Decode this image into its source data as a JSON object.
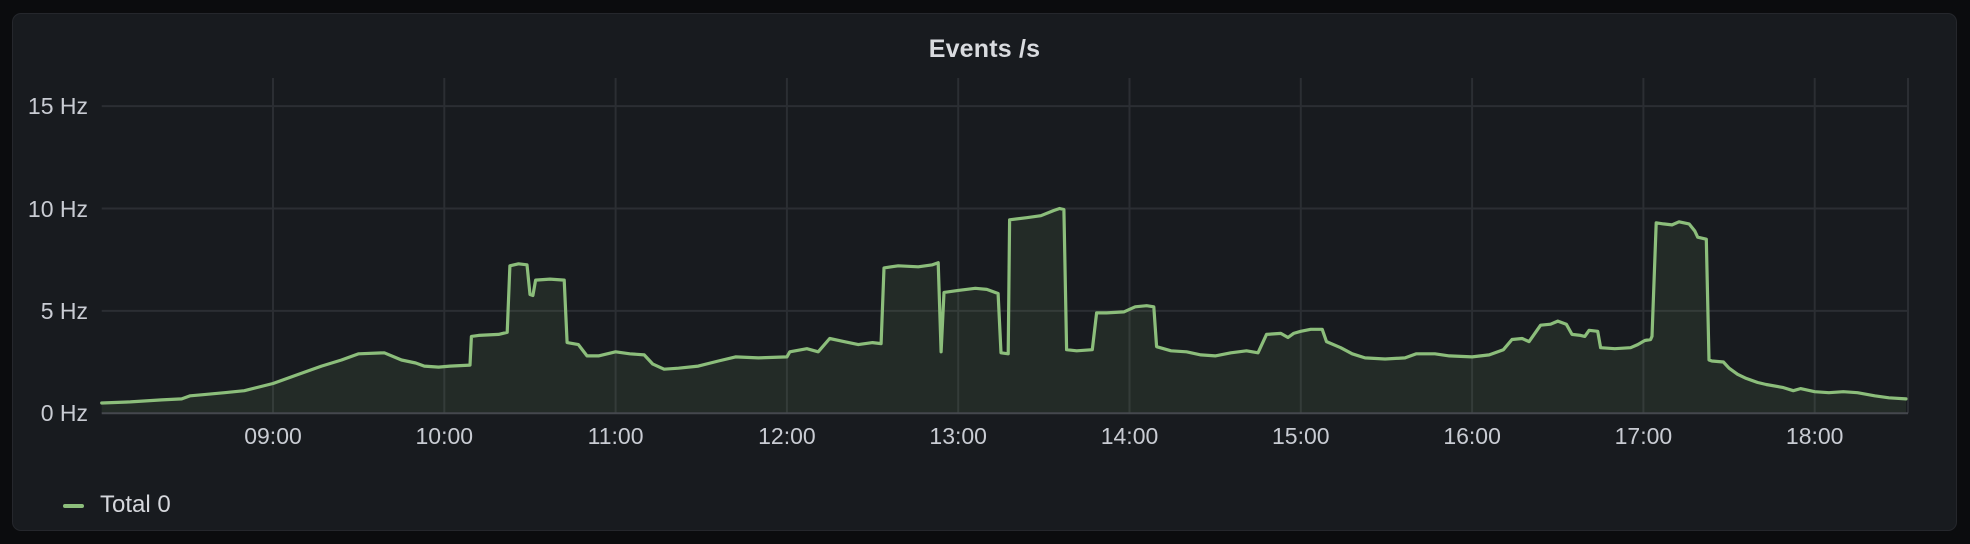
{
  "page": {
    "background": "#0B0C0E"
  },
  "panel": {
    "title": "Events /s",
    "background": "#181B1F",
    "border_color": "#25272C"
  },
  "legend": {
    "items": [
      {
        "label": "Total 0",
        "color": "#8CBE7B"
      }
    ]
  },
  "colors": {
    "series_green": "#8CBE7B",
    "series_fill": "rgba(140,190,120,0.10)",
    "gridline": "#2B2E33",
    "zero_axis_line": "#45484E",
    "tick_text": "#C9CCD3",
    "title_text": "#D9DBDF"
  },
  "chart_data": {
    "type": "area",
    "title": "Events /s",
    "unit": "Hz",
    "legend_position": "bottom-left",
    "grid": true,
    "x_axis": {
      "start": "08:00",
      "end": "18:33",
      "tick_labels": [
        "09:00",
        "10:00",
        "11:00",
        "12:00",
        "13:00",
        "14:00",
        "15:00",
        "16:00",
        "17:00",
        "18:00"
      ],
      "tick_hours": [
        9,
        10,
        11,
        12,
        13,
        14,
        15,
        16,
        17,
        18
      ]
    },
    "y_axis": {
      "tick_labels": [
        "0 Hz",
        "5 Hz",
        "10 Hz",
        "15 Hz"
      ],
      "tick_values": [
        0,
        5,
        10,
        15
      ],
      "min": 0,
      "max_visible": 16.4
    },
    "series": [
      {
        "name": "Total 0",
        "color": "#8CBE7B",
        "fill_opacity": 0.1,
        "points_hour_hz": [
          [
            8.0,
            0.5
          ],
          [
            8.167,
            0.55
          ],
          [
            8.35,
            0.65
          ],
          [
            8.467,
            0.7
          ],
          [
            8.517,
            0.85
          ],
          [
            8.583,
            0.9
          ],
          [
            8.717,
            1.0
          ],
          [
            8.833,
            1.1
          ],
          [
            9.0,
            1.45
          ],
          [
            9.15,
            1.9
          ],
          [
            9.283,
            2.3
          ],
          [
            9.4,
            2.6
          ],
          [
            9.5,
            2.9
          ],
          [
            9.65,
            2.95
          ],
          [
            9.75,
            2.6
          ],
          [
            9.833,
            2.45
          ],
          [
            9.883,
            2.3
          ],
          [
            9.967,
            2.25
          ],
          [
            10.033,
            2.3
          ],
          [
            10.15,
            2.35
          ],
          [
            10.158,
            3.75
          ],
          [
            10.2,
            3.8
          ],
          [
            10.317,
            3.85
          ],
          [
            10.367,
            3.95
          ],
          [
            10.383,
            7.2
          ],
          [
            10.433,
            7.3
          ],
          [
            10.483,
            7.25
          ],
          [
            10.5,
            5.8
          ],
          [
            10.517,
            5.75
          ],
          [
            10.533,
            6.5
          ],
          [
            10.617,
            6.55
          ],
          [
            10.7,
            6.5
          ],
          [
            10.717,
            3.45
          ],
          [
            10.783,
            3.35
          ],
          [
            10.833,
            2.8
          ],
          [
            10.9,
            2.8
          ],
          [
            11.0,
            3.0
          ],
          [
            11.083,
            2.9
          ],
          [
            11.167,
            2.85
          ],
          [
            11.217,
            2.4
          ],
          [
            11.283,
            2.15
          ],
          [
            11.367,
            2.2
          ],
          [
            11.483,
            2.3
          ],
          [
            11.6,
            2.55
          ],
          [
            11.7,
            2.75
          ],
          [
            11.833,
            2.7
          ],
          [
            12.0,
            2.75
          ],
          [
            12.017,
            3.0
          ],
          [
            12.117,
            3.15
          ],
          [
            12.183,
            3.0
          ],
          [
            12.25,
            3.65
          ],
          [
            12.333,
            3.5
          ],
          [
            12.417,
            3.35
          ],
          [
            12.5,
            3.45
          ],
          [
            12.55,
            3.4
          ],
          [
            12.567,
            7.1
          ],
          [
            12.65,
            7.2
          ],
          [
            12.767,
            7.15
          ],
          [
            12.85,
            7.25
          ],
          [
            12.883,
            7.35
          ],
          [
            12.9,
            3.0
          ],
          [
            12.917,
            5.9
          ],
          [
            13.0,
            6.0
          ],
          [
            13.1,
            6.1
          ],
          [
            13.167,
            6.05
          ],
          [
            13.233,
            5.85
          ],
          [
            13.25,
            2.95
          ],
          [
            13.292,
            2.9
          ],
          [
            13.3,
            9.45
          ],
          [
            13.4,
            9.55
          ],
          [
            13.483,
            9.65
          ],
          [
            13.558,
            9.9
          ],
          [
            13.592,
            10.0
          ],
          [
            13.617,
            9.95
          ],
          [
            13.633,
            3.1
          ],
          [
            13.692,
            3.05
          ],
          [
            13.783,
            3.1
          ],
          [
            13.808,
            4.9
          ],
          [
            13.867,
            4.9
          ],
          [
            13.967,
            4.95
          ],
          [
            14.033,
            5.2
          ],
          [
            14.1,
            5.25
          ],
          [
            14.142,
            5.2
          ],
          [
            14.158,
            3.25
          ],
          [
            14.242,
            3.05
          ],
          [
            14.333,
            3.0
          ],
          [
            14.417,
            2.85
          ],
          [
            14.5,
            2.8
          ],
          [
            14.592,
            2.95
          ],
          [
            14.683,
            3.05
          ],
          [
            14.75,
            2.95
          ],
          [
            14.8,
            3.85
          ],
          [
            14.883,
            3.9
          ],
          [
            14.925,
            3.7
          ],
          [
            14.958,
            3.9
          ],
          [
            15.0,
            4.0
          ],
          [
            15.058,
            4.1
          ],
          [
            15.125,
            4.1
          ],
          [
            15.15,
            3.5
          ],
          [
            15.233,
            3.2
          ],
          [
            15.3,
            2.9
          ],
          [
            15.375,
            2.7
          ],
          [
            15.492,
            2.65
          ],
          [
            15.608,
            2.7
          ],
          [
            15.675,
            2.9
          ],
          [
            15.783,
            2.9
          ],
          [
            15.867,
            2.8
          ],
          [
            16.0,
            2.75
          ],
          [
            16.1,
            2.85
          ],
          [
            16.183,
            3.1
          ],
          [
            16.233,
            3.6
          ],
          [
            16.292,
            3.65
          ],
          [
            16.333,
            3.5
          ],
          [
            16.4,
            4.3
          ],
          [
            16.458,
            4.35
          ],
          [
            16.5,
            4.5
          ],
          [
            16.55,
            4.35
          ],
          [
            16.583,
            3.85
          ],
          [
            16.633,
            3.8
          ],
          [
            16.658,
            3.75
          ],
          [
            16.683,
            4.05
          ],
          [
            16.733,
            4.0
          ],
          [
            16.75,
            3.2
          ],
          [
            16.833,
            3.15
          ],
          [
            16.925,
            3.2
          ],
          [
            16.967,
            3.35
          ],
          [
            17.008,
            3.55
          ],
          [
            17.042,
            3.6
          ],
          [
            17.05,
            3.75
          ],
          [
            17.075,
            9.3
          ],
          [
            17.117,
            9.25
          ],
          [
            17.167,
            9.2
          ],
          [
            17.208,
            9.35
          ],
          [
            17.267,
            9.25
          ],
          [
            17.3,
            8.9
          ],
          [
            17.317,
            8.6
          ],
          [
            17.367,
            8.5
          ],
          [
            17.383,
            2.6
          ],
          [
            17.4,
            2.55
          ],
          [
            17.467,
            2.5
          ],
          [
            17.5,
            2.2
          ],
          [
            17.55,
            1.9
          ],
          [
            17.6,
            1.7
          ],
          [
            17.667,
            1.5
          ],
          [
            17.717,
            1.4
          ],
          [
            17.817,
            1.25
          ],
          [
            17.875,
            1.1
          ],
          [
            17.917,
            1.2
          ],
          [
            18.0,
            1.05
          ],
          [
            18.083,
            1.0
          ],
          [
            18.167,
            1.05
          ],
          [
            18.25,
            1.0
          ],
          [
            18.35,
            0.85
          ],
          [
            18.433,
            0.75
          ],
          [
            18.533,
            0.7
          ]
        ]
      }
    ]
  }
}
